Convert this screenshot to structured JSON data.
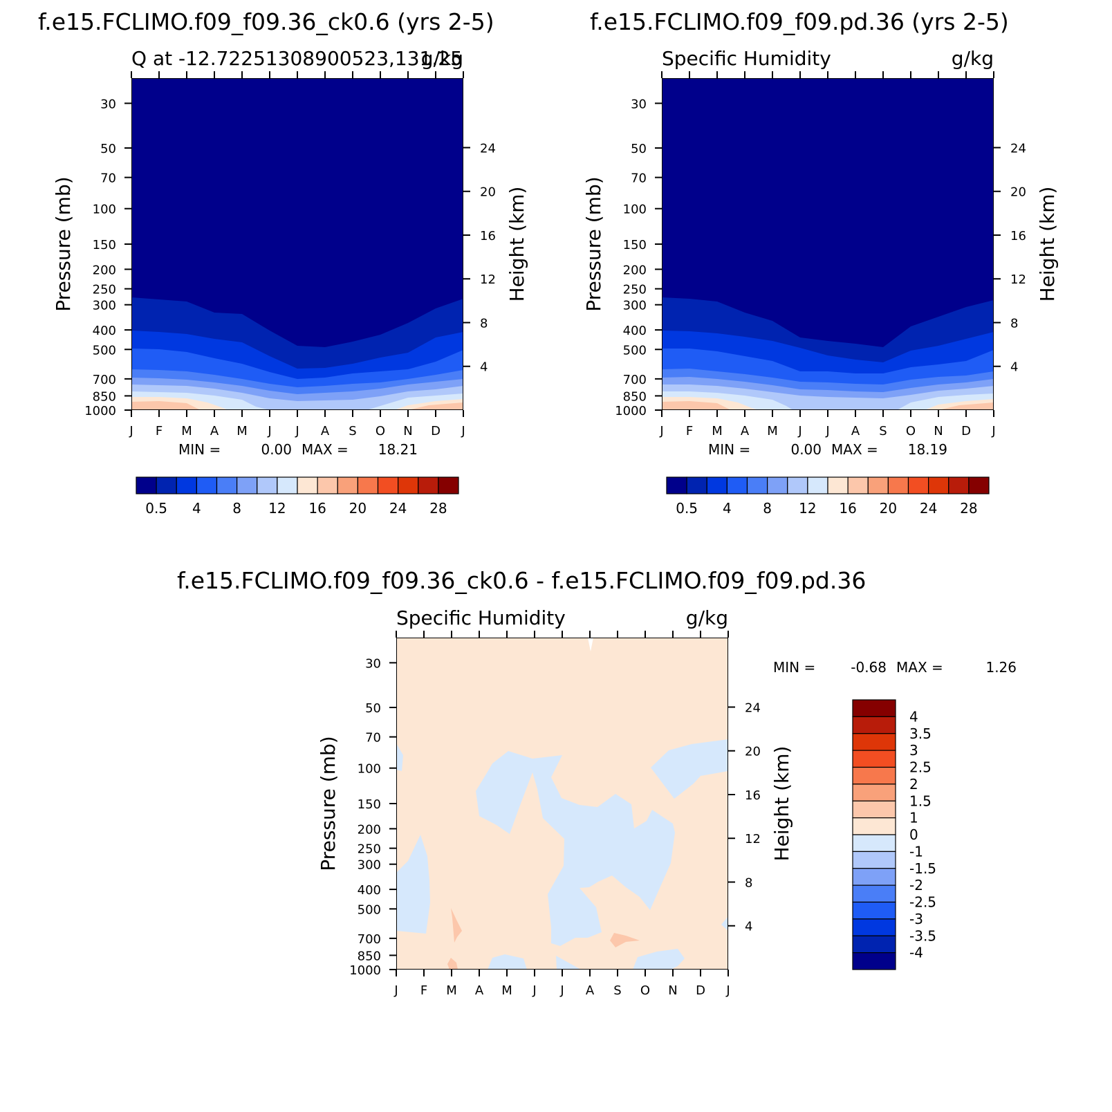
{
  "chart_data": [
    {
      "type": "heatmap",
      "title": "f.e15.FCLIMO.f09_f09.36_ck0.6 (yrs 2-5)",
      "left_string": "Q at -12.72251308900523,131.25",
      "right_string": "g/kg",
      "ylabel": "Pressure (mb)",
      "ylabel_right": "Height (km)",
      "x_ticks": [
        "J",
        "F",
        "M",
        "A",
        "M",
        "J",
        "J",
        "A",
        "S",
        "O",
        "N",
        "D",
        "J"
      ],
      "y_ticks": [
        "30",
        "50",
        "70",
        "100",
        "150",
        "200",
        "250",
        "300",
        "400",
        "500",
        "700",
        "850",
        "1000"
      ],
      "y_ticks_right": [
        "24",
        "20",
        "16",
        "12",
        "8",
        "4"
      ],
      "min_label": "MIN =",
      "min_value": "0.00",
      "max_label": "MAX =",
      "max_value": "18.21",
      "colorbar_labels": [
        "0.5",
        "4",
        "8",
        "12",
        "16",
        "20",
        "24",
        "28"
      ],
      "colorbar_colors": [
        "#00008b",
        "#0023b0",
        "#0038e0",
        "#1f5cf5",
        "#4a7ef7",
        "#7ea1f7",
        "#b0c8fa",
        "#d6e8fc",
        "#fde7d4",
        "#fcc7ab",
        "#f9a17a",
        "#f7784c",
        "#f24e22",
        "#de3608",
        "#b81c0a",
        "#850000"
      ],
      "levels_top_km": [
        9.4,
        7.0,
        4.9,
        3.4,
        2.5,
        1.6,
        1.0,
        0.6,
        0.3
      ]
    },
    {
      "type": "heatmap",
      "title": "f.e15.FCLIMO.f09_f09.pd.36 (yrs 2-5)",
      "left_string": "Specific Humidity",
      "right_string": "g/kg",
      "ylabel": "Pressure (mb)",
      "ylabel_right": "Height (km)",
      "x_ticks": [
        "J",
        "F",
        "M",
        "A",
        "M",
        "J",
        "J",
        "A",
        "S",
        "O",
        "N",
        "D",
        "J"
      ],
      "y_ticks": [
        "30",
        "50",
        "70",
        "100",
        "150",
        "200",
        "250",
        "300",
        "400",
        "500",
        "700",
        "850",
        "1000"
      ],
      "y_ticks_right": [
        "24",
        "20",
        "16",
        "12",
        "8",
        "4"
      ],
      "min_label": "MIN =",
      "min_value": "0.00",
      "max_label": "MAX =",
      "max_value": "18.19",
      "colorbar_labels": [
        "0.5",
        "4",
        "8",
        "12",
        "16",
        "20",
        "24",
        "28"
      ],
      "colorbar_colors": [
        "#00008b",
        "#0023b0",
        "#0038e0",
        "#1f5cf5",
        "#4a7ef7",
        "#7ea1f7",
        "#b0c8fa",
        "#d6e8fc",
        "#fde7d4",
        "#fcc7ab",
        "#f9a17a",
        "#f7784c",
        "#f24e22",
        "#de3608",
        "#b81c0a",
        "#850000"
      ],
      "levels_top_km": [
        9.4,
        7.0,
        4.9,
        3.4,
        2.5,
        1.6,
        1.0,
        0.6,
        0.3
      ]
    },
    {
      "type": "heatmap",
      "title": "f.e15.FCLIMO.f09_f09.36_ck0.6 - f.e15.FCLIMO.f09_f09.pd.36",
      "left_string": "Specific Humidity",
      "right_string": "g/kg",
      "ylabel": "Pressure (mb)",
      "ylabel_right": "Height (km)",
      "x_ticks": [
        "J",
        "F",
        "M",
        "A",
        "M",
        "J",
        "J",
        "A",
        "S",
        "O",
        "N",
        "D",
        "J"
      ],
      "y_ticks": [
        "30",
        "50",
        "70",
        "100",
        "150",
        "200",
        "250",
        "300",
        "400",
        "500",
        "700",
        "850",
        "1000"
      ],
      "y_ticks_right": [
        "24",
        "20",
        "16",
        "12",
        "8",
        "4"
      ],
      "min_label": "MIN =",
      "min_value": "-0.68",
      "max_label": "MAX =",
      "max_value": "1.26",
      "colorbar_labels": [
        "4",
        "3.5",
        "3",
        "2.5",
        "2",
        "1.5",
        "1",
        "0",
        "-1",
        "-1.5",
        "-2",
        "-2.5",
        "-3",
        "-3.5",
        "-4"
      ],
      "colorbar_colors": [
        "#850000",
        "#b81c0a",
        "#de3608",
        "#f24e22",
        "#f7784c",
        "#f9a17a",
        "#fcc7ab",
        "#fde7d4",
        "#d6e8fc",
        "#b0c8fa",
        "#7ea1f7",
        "#4a7ef7",
        "#1f5cf5",
        "#0038e0",
        "#0023b0",
        "#00008b"
      ]
    }
  ]
}
